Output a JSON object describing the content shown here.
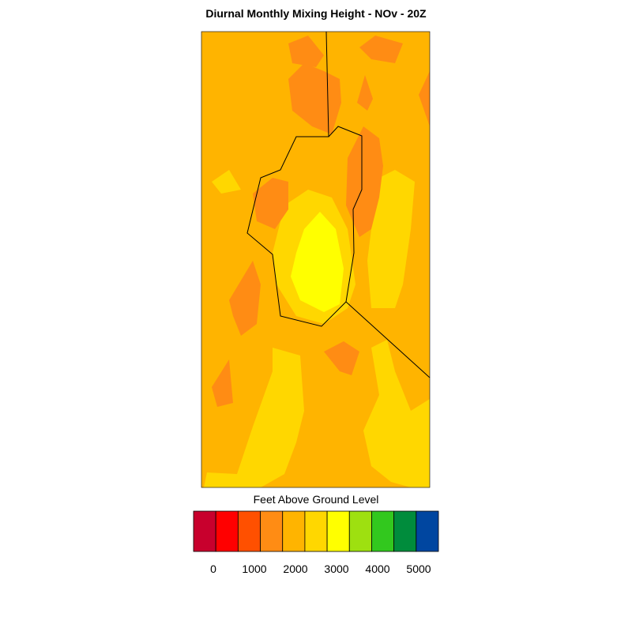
{
  "title": "Diurnal Monthly Mixing Height - NOv - 20Z",
  "colorbar": {
    "label": "Feet Above Ground Level",
    "colors": [
      "#c8002d",
      "#ff0000",
      "#ff5000",
      "#ff8c14",
      "#ffb400",
      "#ffd700",
      "#ffff00",
      "#9ee010",
      "#32c81e",
      "#008c3c",
      "#0046a0",
      "#0000ff"
    ],
    "ticks": [
      0,
      1000,
      2000,
      3000,
      4000,
      5000
    ]
  }
}
